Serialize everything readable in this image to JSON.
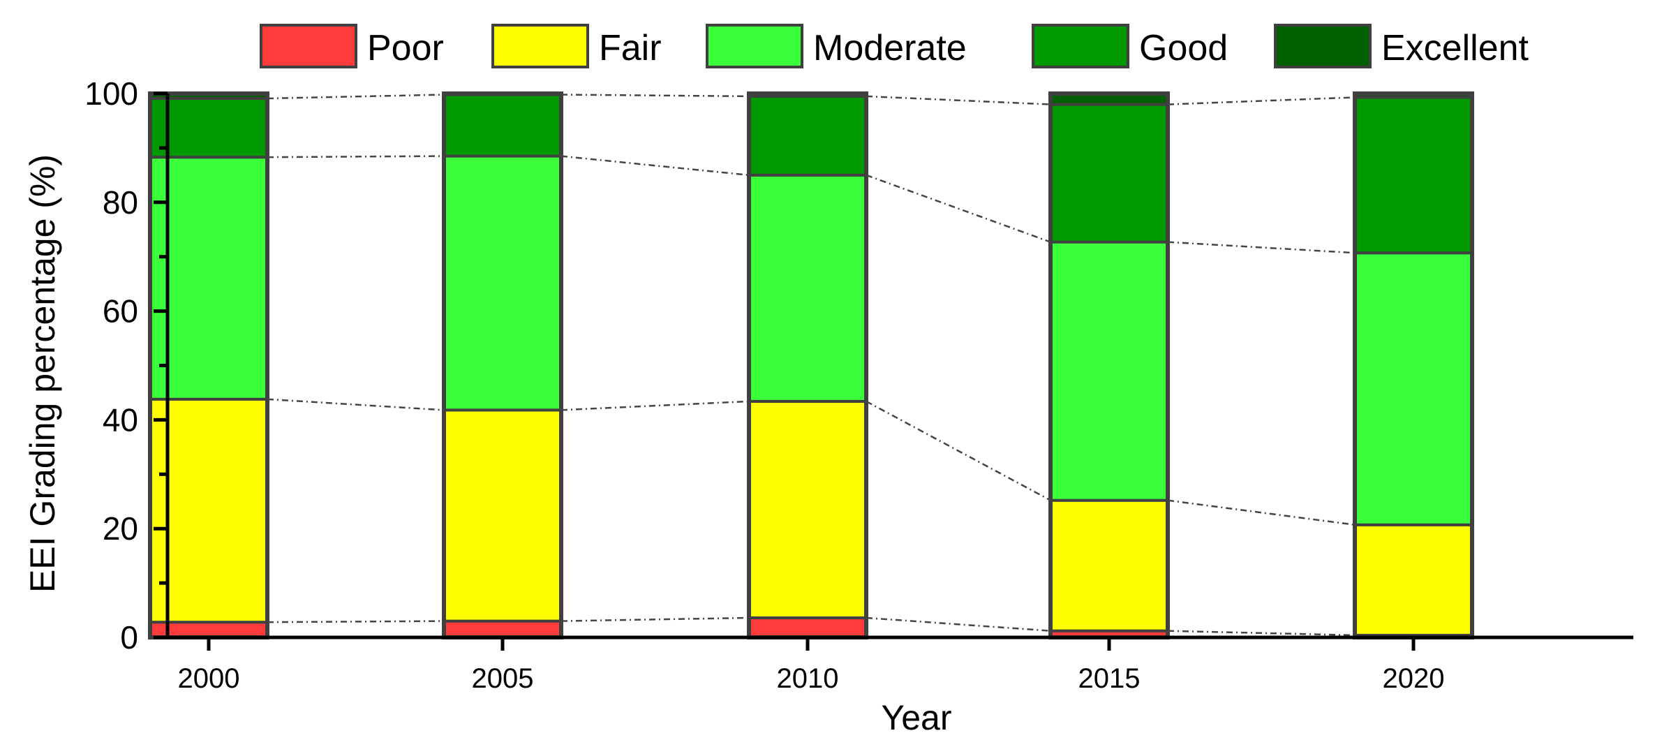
{
  "chart_data": {
    "type": "bar",
    "stacked": true,
    "title": "",
    "xlabel": "Year",
    "ylabel": "EEI Grading percentage (%)",
    "ylim": [
      0,
      100
    ],
    "yticks": [
      "0",
      "20",
      "40",
      "60",
      "80",
      "100"
    ],
    "categories": [
      "2000",
      "2005",
      "2010",
      "2015",
      "2020"
    ],
    "series": [
      {
        "name": "Poor",
        "color": "#ff3b3b",
        "values": [
          2.8,
          3.0,
          3.6,
          1.2,
          0.4
        ]
      },
      {
        "name": "Fair",
        "color": "#ffff00",
        "values": [
          41.0,
          38.8,
          39.8,
          24.0,
          20.3
        ]
      },
      {
        "name": "Moderate",
        "color": "#3bff3b",
        "values": [
          44.5,
          46.7,
          41.6,
          47.5,
          50.0
        ]
      },
      {
        "name": "Good",
        "color": "#009a00",
        "values": [
          10.8,
          11.3,
          14.5,
          25.3,
          28.6
        ]
      },
      {
        "name": "Excellent",
        "color": "#006000",
        "values": [
          0.9,
          0.2,
          0.5,
          2.0,
          0.7
        ]
      }
    ],
    "legend_position": "top",
    "connector_lines": "dash-dot"
  }
}
